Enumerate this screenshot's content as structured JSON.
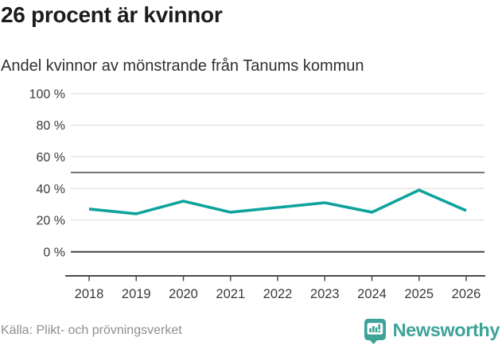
{
  "header": {
    "title": "26 procent är kvinnor",
    "subtitle": "Andel kvinnor av mönstrande från Tanums kommun"
  },
  "chart_data": {
    "type": "line",
    "title": "26 procent är kvinnor",
    "subtitle": "Andel kvinnor av mönstrande från Tanums kommun",
    "series": [
      {
        "name": "Andel kvinnor av mönstrande",
        "values": [
          27,
          24,
          32,
          25,
          28,
          31,
          25,
          39,
          26
        ]
      }
    ],
    "x": [
      "2018",
      "2019",
      "2020",
      "2021",
      "2022",
      "2023",
      "2024",
      "2025",
      "2026"
    ],
    "xlabel": "",
    "ylabel": "",
    "ylim": [
      0,
      100
    ],
    "yunit": "%",
    "ytick_labels": [
      "100 %",
      "80 %",
      "60 %",
      "40 %",
      "20 %",
      "0 %"
    ],
    "reference_line_value": 50,
    "grid": "horizontal",
    "legend": "none",
    "line_color": "#0ea39c"
  },
  "footer": {
    "source": "Källa: Plikt- och prövningsverket",
    "brand": "Newsworthy",
    "brand_color": "#3da399"
  }
}
